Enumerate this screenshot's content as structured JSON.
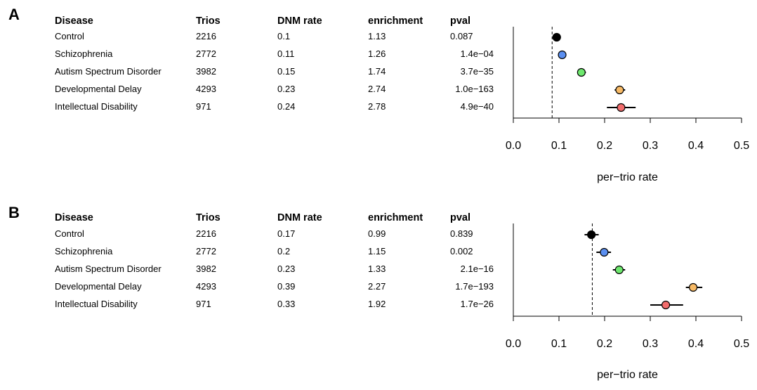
{
  "columns": [
    "Disease",
    "Trios",
    "DNM rate",
    "enrichment",
    "pval"
  ],
  "chart_data": [
    {
      "panel": "A",
      "type": "table",
      "rows": [
        {
          "disease": "Control",
          "trios": "2216",
          "dnm_rate": "0.1",
          "enrichment": "1.13",
          "pval": "0.087",
          "ci": [
            0.087,
            0.104
          ],
          "color": "#000000"
        },
        {
          "disease": "Schizophrenia",
          "trios": "2772",
          "dnm_rate": "0.11",
          "enrichment": "1.26",
          "pval": "1.4e−04",
          "ci": [
            0.098,
            0.116
          ],
          "color": "#5b8ff0"
        },
        {
          "disease": "Autism Spectrum Disorder",
          "trios": "3982",
          "dnm_rate": "0.15",
          "enrichment": "1.74",
          "pval": "3.7e−35",
          "ci": [
            0.14,
            0.159
          ],
          "color": "#6ee86e"
        },
        {
          "disease": "Developmental Delay",
          "trios": "4293",
          "dnm_rate": "0.23",
          "enrichment": "2.74",
          "pval": "1.0e−163",
          "ci": [
            0.222,
            0.245
          ],
          "color": "#f7ba66"
        },
        {
          "disease": "Intellectual Disability",
          "trios": "971",
          "dnm_rate": "0.24",
          "enrichment": "2.78",
          "pval": "4.9e−40",
          "ci": [
            0.205,
            0.268
          ],
          "color": "#f26d6d"
        }
      ],
      "point_values": [
        0.095,
        0.107,
        0.149,
        0.233,
        0.236
      ],
      "reference_line": 0.085,
      "xlabel": "per−trio rate",
      "xlim": [
        0,
        0.5
      ],
      "xticks": [
        "0.0",
        "0.1",
        "0.2",
        "0.3",
        "0.4",
        "0.5"
      ]
    },
    {
      "panel": "B",
      "type": "table",
      "rows": [
        {
          "disease": "Control",
          "trios": "2216",
          "dnm_rate": "0.17",
          "enrichment": "0.99",
          "pval": "0.839",
          "ci": [
            0.156,
            0.187
          ],
          "color": "#000000"
        },
        {
          "disease": "Schizophrenia",
          "trios": "2772",
          "dnm_rate": "0.2",
          "enrichment": "1.15",
          "pval": "0.002",
          "ci": [
            0.182,
            0.214
          ],
          "color": "#5b8ff0"
        },
        {
          "disease": "Autism Spectrum Disorder",
          "trios": "3982",
          "dnm_rate": "0.23",
          "enrichment": "1.33",
          "pval": "2.1e−16",
          "ci": [
            0.218,
            0.245
          ],
          "color": "#6ee86e"
        },
        {
          "disease": "Developmental Delay",
          "trios": "4293",
          "dnm_rate": "0.39",
          "enrichment": "2.27",
          "pval": "1.7e−193",
          "ci": [
            0.378,
            0.414
          ],
          "color": "#f7ba66"
        },
        {
          "disease": "Intellectual Disability",
          "trios": "971",
          "dnm_rate": "0.33",
          "enrichment": "1.92",
          "pval": "1.7e−26",
          "ci": [
            0.3,
            0.372
          ],
          "color": "#f26d6d"
        }
      ],
      "point_values": [
        0.171,
        0.199,
        0.232,
        0.394,
        0.334
      ],
      "reference_line": 0.173,
      "xlabel": "per−trio rate",
      "xlim": [
        0,
        0.5
      ],
      "xticks": [
        "0.0",
        "0.1",
        "0.2",
        "0.3",
        "0.4",
        "0.5"
      ]
    }
  ]
}
